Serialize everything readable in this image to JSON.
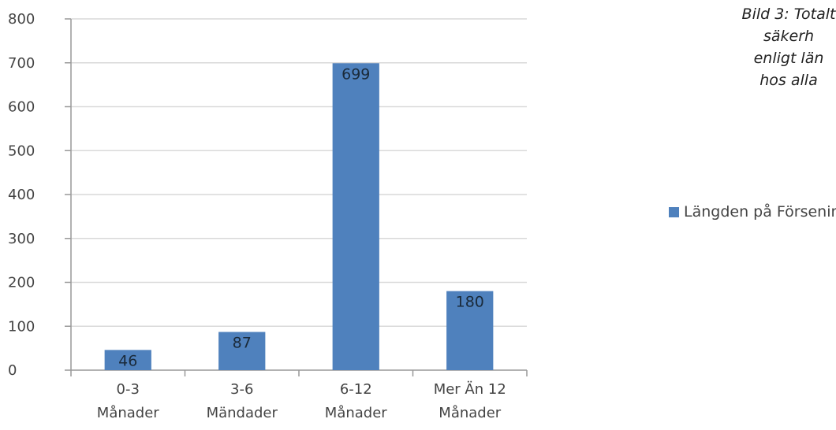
{
  "caption": {
    "lines": [
      "Bild 3: Totalt",
      "säkerh",
      "enligt län",
      "hos alla"
    ]
  },
  "colors": {
    "bar": "#4f81bd",
    "grid": "#d9d9d9",
    "axis": "#999999"
  },
  "chart_data": {
    "type": "bar",
    "title": "",
    "xlabel": "",
    "ylabel": "",
    "categories": [
      [
        "0-3",
        "Månader"
      ],
      [
        "3-6",
        "Mändader"
      ],
      [
        "6-12",
        "Månader"
      ],
      [
        "Mer Än 12",
        "Månader"
      ]
    ],
    "series": [
      {
        "name": "Längden på Förseningen",
        "values": [
          46,
          87,
          699,
          180
        ]
      }
    ],
    "ylim": [
      0,
      800
    ],
    "yticks": [
      0,
      100,
      200,
      300,
      400,
      500,
      600,
      700,
      800
    ],
    "grid": true,
    "legend_position": "right"
  }
}
